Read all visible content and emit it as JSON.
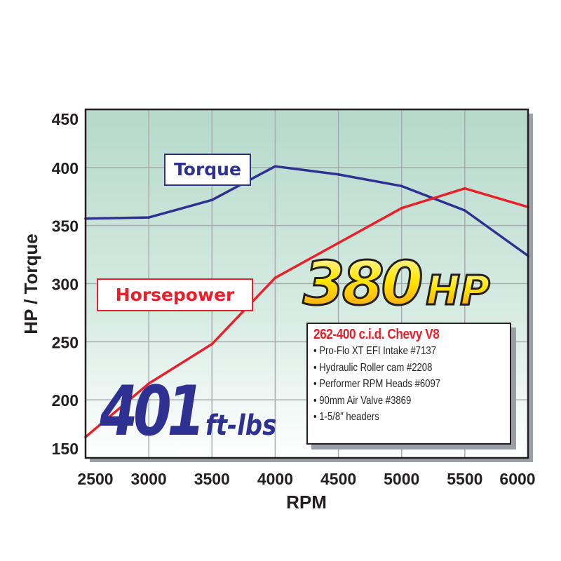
{
  "chart_data": {
    "type": "line",
    "xlabel": "RPM",
    "ylabel": "HP / Torque",
    "x": [
      2500,
      3000,
      3500,
      4000,
      4500,
      5000,
      5500,
      6000
    ],
    "xlim": [
      2500,
      6000
    ],
    "ylim": [
      150,
      450
    ],
    "xticks": [
      "2500",
      "3000",
      "3500",
      "4000",
      "4500",
      "5000",
      "5500",
      "6000"
    ],
    "yticks": [
      "150",
      "200",
      "250",
      "300",
      "350",
      "400",
      "450"
    ],
    "grid": true,
    "series": [
      {
        "name": "Torque",
        "color": "#2e3192",
        "values": [
          356,
          357,
          372,
          401,
          394,
          384,
          363,
          324
        ]
      },
      {
        "name": "Horsepower",
        "color": "#e8202a",
        "values": [
          168,
          214,
          248,
          305,
          335,
          365,
          382,
          366
        ]
      }
    ],
    "annotations": {
      "peak_hp_value": "380",
      "peak_hp_unit": "HP",
      "peak_torque_value": "401",
      "peak_torque_unit": "ft-lbs"
    },
    "background": "gradient #b9dccf to #ffffff"
  },
  "specs": {
    "title": "262-400 c.i.d. Chevy V8",
    "items": [
      "• Pro-Flo XT EFI Intake #7137",
      "• Hydraulic Roller cam #2208",
      "• Performer RPM Heads #6097",
      "• 90mm Air Valve #3869",
      "• 1-5/8″ headers"
    ]
  }
}
